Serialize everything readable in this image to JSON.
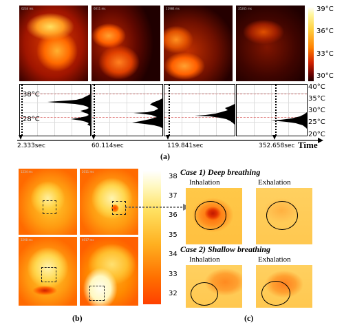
{
  "panel_a": {
    "colorbar_labels": [
      "39°C",
      "36°C",
      "33°C",
      "30°C"
    ],
    "hist_ref_labels": [
      "38°C",
      "28°C"
    ],
    "hist_axis_labels": [
      "40°C",
      "35°C",
      "30°C",
      "25°C",
      "20°C"
    ],
    "times": [
      "2.333sec",
      "60.114sec",
      "119.841sec",
      "352.658sec"
    ],
    "time_label": "Time",
    "caption": "(a)"
  },
  "panel_b": {
    "colorbar_ticks": [
      "38",
      "37",
      "36",
      "35",
      "34",
      "33",
      "32"
    ],
    "caption": "(b)"
  },
  "panel_c": {
    "case1_title": "Case 1) Deep breathing",
    "case2_title": "Case 2) Shallow breathing",
    "inhalation": "Inhalation",
    "exhalation": "Exhalation",
    "caption": "(c)"
  }
}
